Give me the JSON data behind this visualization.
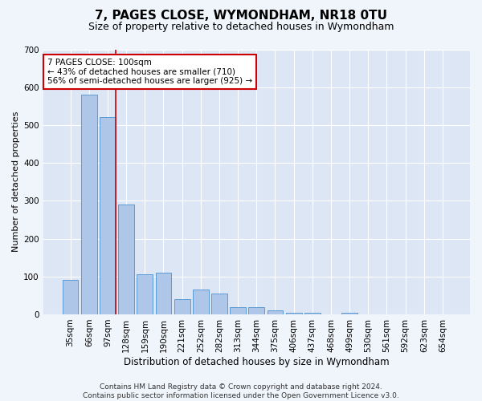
{
  "title": "7, PAGES CLOSE, WYMONDHAM, NR18 0TU",
  "subtitle": "Size of property relative to detached houses in Wymondham",
  "xlabel": "Distribution of detached houses by size in Wymondham",
  "ylabel": "Number of detached properties",
  "categories": [
    "35sqm",
    "66sqm",
    "97sqm",
    "128sqm",
    "159sqm",
    "190sqm",
    "221sqm",
    "252sqm",
    "282sqm",
    "313sqm",
    "344sqm",
    "375sqm",
    "406sqm",
    "437sqm",
    "468sqm",
    "499sqm",
    "530sqm",
    "561sqm",
    "592sqm",
    "623sqm",
    "654sqm"
  ],
  "values": [
    90,
    580,
    520,
    290,
    105,
    110,
    40,
    65,
    55,
    20,
    20,
    10,
    5,
    5,
    0,
    5,
    0,
    0,
    0,
    0,
    0
  ],
  "bar_color": "#aec6e8",
  "bar_edge_color": "#5b9bd5",
  "background_color": "#dce6f5",
  "grid_color": "#ffffff",
  "fig_background": "#f0f4fb",
  "ref_line_color": "#cc0000",
  "annotation_text": "7 PAGES CLOSE: 100sqm\n← 43% of detached houses are smaller (710)\n56% of semi-detached houses are larger (925) →",
  "annotation_box_facecolor": "#ffffff",
  "annotation_box_edgecolor": "#cc0000",
  "ylim": [
    0,
    700
  ],
  "yticks": [
    0,
    100,
    200,
    300,
    400,
    500,
    600,
    700
  ],
  "footer": "Contains HM Land Registry data © Crown copyright and database right 2024.\nContains public sector information licensed under the Open Government Licence v3.0.",
  "title_fontsize": 11,
  "subtitle_fontsize": 9,
  "xlabel_fontsize": 8.5,
  "ylabel_fontsize": 8,
  "tick_fontsize": 7.5,
  "annot_fontsize": 7.5,
  "footer_fontsize": 6.5
}
